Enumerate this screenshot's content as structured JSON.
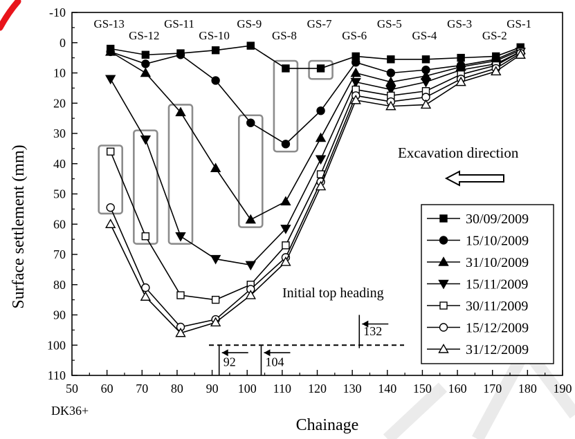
{
  "chart_data": {
    "type": "line",
    "title": "",
    "xlabel": "Chainage",
    "ylabel": "Surface settlement (mm)",
    "x_prefix_label": "DK36+",
    "xlim": [
      50,
      190
    ],
    "ylim": [
      -10,
      110
    ],
    "y_inverted": true,
    "x_ticks": [
      50,
      60,
      70,
      80,
      90,
      100,
      110,
      120,
      130,
      140,
      150,
      160,
      170,
      180,
      190
    ],
    "y_ticks": [
      -10,
      0,
      10,
      20,
      30,
      40,
      50,
      60,
      70,
      80,
      90,
      100,
      110
    ],
    "grid": false,
    "legend_position": "bottom-right",
    "monitoring_points": [
      {
        "label": "GS-13",
        "x": 61
      },
      {
        "label": "GS-12",
        "x": 71
      },
      {
        "label": "GS-11",
        "x": 81
      },
      {
        "label": "GS-10",
        "x": 91
      },
      {
        "label": "GS-9",
        "x": 101
      },
      {
        "label": "GS-8",
        "x": 111
      },
      {
        "label": "GS-7",
        "x": 121
      },
      {
        "label": "GS-6",
        "x": 131
      },
      {
        "label": "GS-5",
        "x": 141
      },
      {
        "label": "GS-4",
        "x": 151
      },
      {
        "label": "GS-3",
        "x": 161
      },
      {
        "label": "GS-2",
        "x": 171
      },
      {
        "label": "GS-1",
        "x": 178
      }
    ],
    "x": [
      61,
      71,
      81,
      91,
      101,
      111,
      121,
      131,
      141,
      151,
      161,
      171,
      178
    ],
    "series": [
      {
        "name": "30/09/2009",
        "marker": "square-filled",
        "values": [
          2,
          4,
          3.5,
          2.5,
          1,
          8.5,
          8.5,
          4.5,
          5.5,
          5.5,
          5,
          4.5,
          1.5
        ]
      },
      {
        "name": "15/10/2009",
        "marker": "circle-filled",
        "values": [
          3,
          7,
          4,
          12.5,
          26.5,
          33.5,
          22.5,
          6.5,
          10,
          9,
          7.5,
          5.5,
          2
        ]
      },
      {
        "name": "31/10/2009",
        "marker": "triangle-up-filled",
        "values": [
          3,
          10,
          23,
          41.5,
          58.5,
          52.5,
          31.5,
          10,
          13,
          11,
          8,
          6,
          2.5
        ]
      },
      {
        "name": "15/11/2009",
        "marker": "triangle-down-filled",
        "values": [
          12,
          32,
          64,
          71.5,
          73.5,
          61.5,
          38.5,
          13,
          15.5,
          13,
          9,
          7,
          3
        ]
      },
      {
        "name": "30/11/2009",
        "marker": "square-open",
        "values": [
          36,
          64,
          83.5,
          85,
          80,
          67,
          43.5,
          15.5,
          17.5,
          16,
          10.5,
          7.5,
          3
        ]
      },
      {
        "name": "15/12/2009",
        "marker": "circle-open",
        "values": [
          54.5,
          81,
          94,
          91.5,
          81.5,
          71,
          46,
          17.5,
          19.5,
          18,
          12,
          8.5,
          3.5
        ]
      },
      {
        "name": "31/12/2009",
        "marker": "triangle-up-open",
        "values": [
          60,
          84,
          96,
          92.5,
          83.5,
          72.5,
          47.5,
          19,
          21,
          20.5,
          13,
          9.5,
          4
        ]
      }
    ],
    "highlight_boxes": [
      {
        "x_center": 61,
        "y_from": 34,
        "y_to": 56.5
      },
      {
        "x_center": 71,
        "y_from": 29,
        "y_to": 66.5
      },
      {
        "x_center": 81,
        "y_from": 20.5,
        "y_to": 66.5
      },
      {
        "x_center": 101,
        "y_from": 24,
        "y_to": 61
      },
      {
        "x_center": 111,
        "y_from": 6,
        "y_to": 36
      },
      {
        "x_center": 121,
        "y_from": 6,
        "y_to": 12
      }
    ],
    "annotations": {
      "excavation_direction": "Excavation direction",
      "initial_top_heading": "Initial top heading",
      "heading_level": 100,
      "headings": [
        {
          "label": "92",
          "x": 92
        },
        {
          "label": "104",
          "x": 104
        },
        {
          "label": "132",
          "x": 132
        }
      ]
    }
  }
}
